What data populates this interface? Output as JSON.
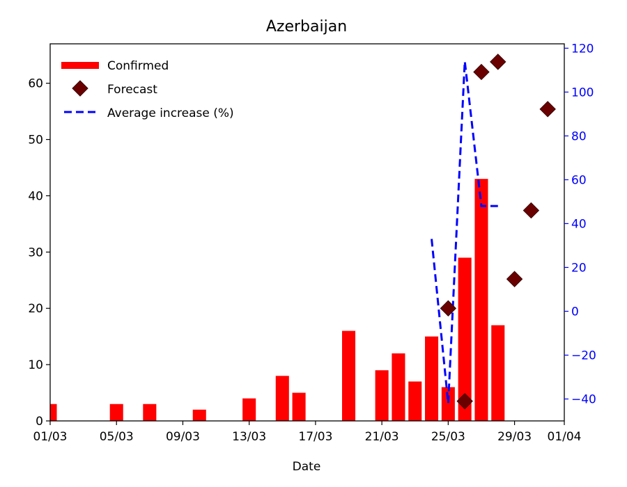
{
  "colors": {
    "confirmed": "#ff0000",
    "forecast": "#6b0000",
    "average": "#0000ff",
    "axis": "#000000",
    "right_axis": "#0000ff"
  },
  "chart_data": {
    "type": "bar",
    "title": "Azerbaijan",
    "xlabel": "Date",
    "ylabel": "",
    "y2label": "",
    "x_ticks": [
      "01/03",
      "05/03",
      "09/03",
      "13/03",
      "17/03",
      "21/03",
      "25/03",
      "29/03",
      "01/04"
    ],
    "x_tick_days": [
      1,
      5,
      9,
      13,
      17,
      21,
      25,
      29,
      32
    ],
    "xlim": [
      1,
      32
    ],
    "ylim": [
      0,
      67
    ],
    "y_ticks": [
      0,
      10,
      20,
      30,
      40,
      50,
      60
    ],
    "y2lim": [
      -50,
      122
    ],
    "y2_ticks": [
      -40,
      -20,
      0,
      20,
      40,
      60,
      80,
      100,
      120
    ],
    "legend": {
      "placement": "top-left",
      "entries": [
        "Confirmed",
        "Forecast",
        "Average increase (%)"
      ]
    },
    "series": [
      {
        "name": "Confirmed",
        "type": "bar",
        "axis": "left",
        "x": [
          "01/03",
          "05/03",
          "07/03",
          "10/03",
          "13/03",
          "15/03",
          "16/03",
          "19/03",
          "21/03",
          "22/03",
          "23/03",
          "24/03",
          "25/03",
          "26/03",
          "27/03",
          "28/03"
        ],
        "x_days": [
          1,
          5,
          7,
          10,
          13,
          15,
          16,
          19,
          21,
          22,
          23,
          24,
          25,
          26,
          27,
          28
        ],
        "values": [
          3,
          3,
          3,
          2,
          4,
          8,
          5,
          16,
          9,
          12,
          7,
          15,
          6,
          29,
          43,
          17
        ]
      },
      {
        "name": "Forecast",
        "type": "scatter",
        "axis": "left",
        "x": [
          "25/03",
          "26/03",
          "27/03",
          "28/03",
          "29/03",
          "30/03",
          "31/03"
        ],
        "x_days": [
          25,
          26,
          27,
          28,
          29,
          30,
          31
        ],
        "values": [
          20,
          3.5,
          62,
          63.8,
          25.2,
          37.4,
          55.4
        ]
      },
      {
        "name": "Average increase (%)",
        "type": "line",
        "axis": "right",
        "x": [
          "24/03",
          "25/03",
          "26/03",
          "27/03",
          "28/03"
        ],
        "x_days": [
          24,
          25,
          26,
          27,
          28
        ],
        "values": [
          33,
          -42,
          114,
          48,
          48
        ]
      }
    ]
  }
}
